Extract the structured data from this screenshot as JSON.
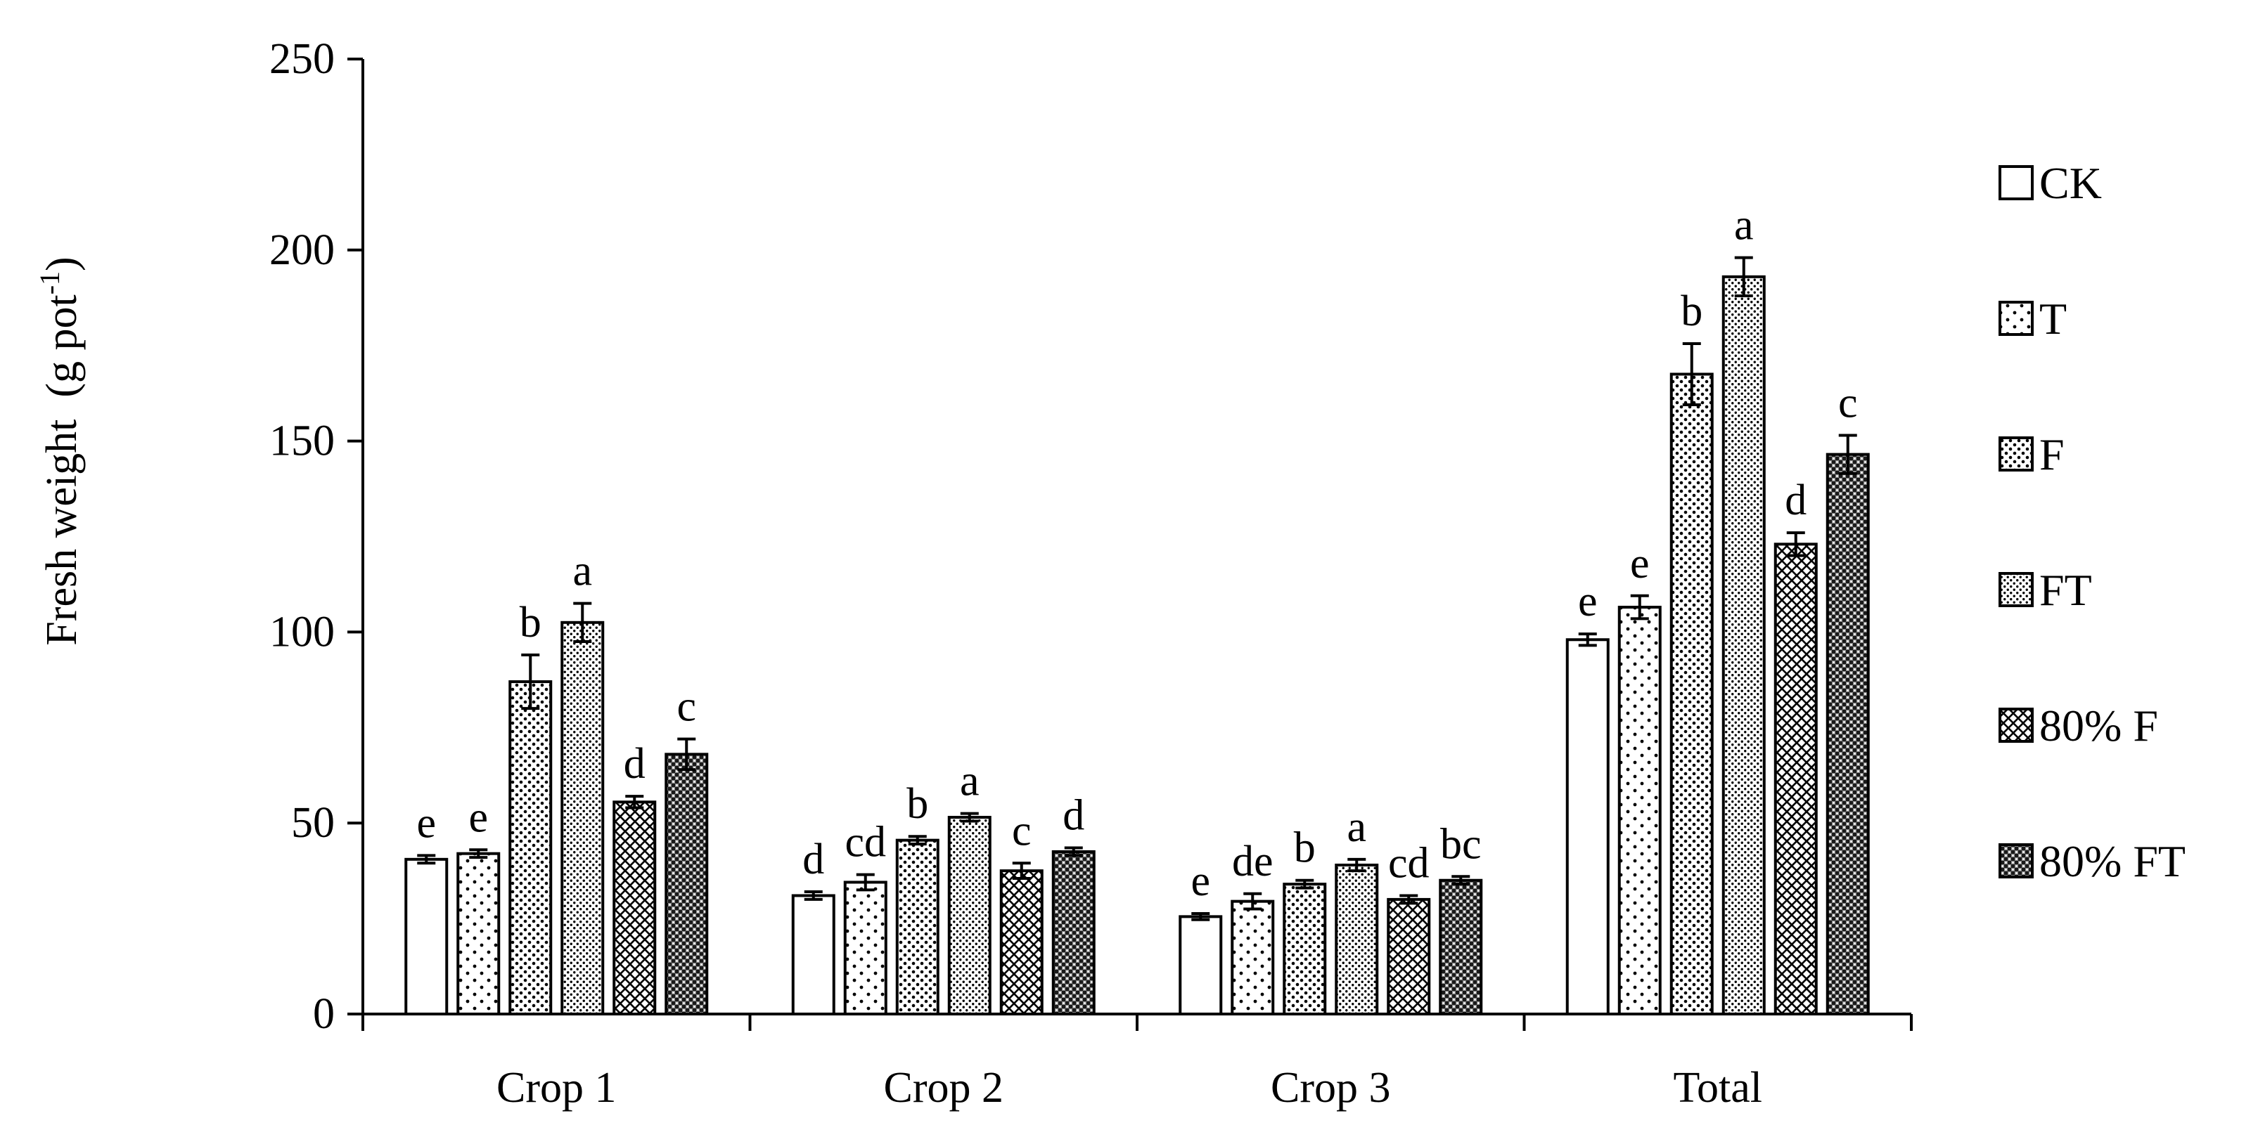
{
  "chart_data": {
    "type": "bar",
    "title": "",
    "xlabel": "",
    "ylabel": {
      "text": "Fresh weight (g pot",
      "superscript": "-1",
      "suffix": ")"
    },
    "ylim": [
      0,
      250
    ],
    "yticks": [
      "0",
      "50",
      "100",
      "150",
      "200",
      "250"
    ],
    "categories": [
      "Crop 1",
      "Crop 2",
      "Crop 3",
      "Total"
    ],
    "legend_position": "right",
    "series": [
      {
        "name": "CK",
        "pattern": "none",
        "values": [
          40.5,
          31,
          25.5,
          98
        ],
        "errors": [
          1,
          1,
          0.8,
          1.5
        ],
        "labels": [
          "e",
          "d",
          "e",
          "e"
        ]
      },
      {
        "name": "T",
        "pattern": "sparse-dots",
        "values": [
          42,
          34.5,
          29.5,
          106.5
        ],
        "errors": [
          1,
          2,
          2,
          3
        ],
        "labels": [
          "e",
          "cd",
          "de",
          "e"
        ]
      },
      {
        "name": "F",
        "pattern": "dots",
        "values": [
          87,
          45.5,
          34,
          167.5
        ],
        "errors": [
          7,
          1,
          1,
          8
        ],
        "labels": [
          "b",
          "b",
          "b",
          "b"
        ]
      },
      {
        "name": "FT",
        "pattern": "fine-dots",
        "values": [
          102.5,
          51.5,
          39,
          193
        ],
        "errors": [
          5,
          1,
          1.5,
          5
        ],
        "labels": [
          "a",
          "a",
          "a",
          "a"
        ]
      },
      {
        "name": "80% F",
        "pattern": "crosshatch",
        "values": [
          55.5,
          37.5,
          30,
          123
        ],
        "errors": [
          1.5,
          2,
          1,
          3
        ],
        "labels": [
          "d",
          "c",
          "cd",
          "d"
        ]
      },
      {
        "name": "80% FT",
        "pattern": "dense",
        "values": [
          68,
          42.5,
          35,
          146.5
        ],
        "errors": [
          4,
          1,
          1,
          5
        ],
        "labels": [
          "c",
          "d",
          "bc",
          "c"
        ]
      }
    ]
  }
}
